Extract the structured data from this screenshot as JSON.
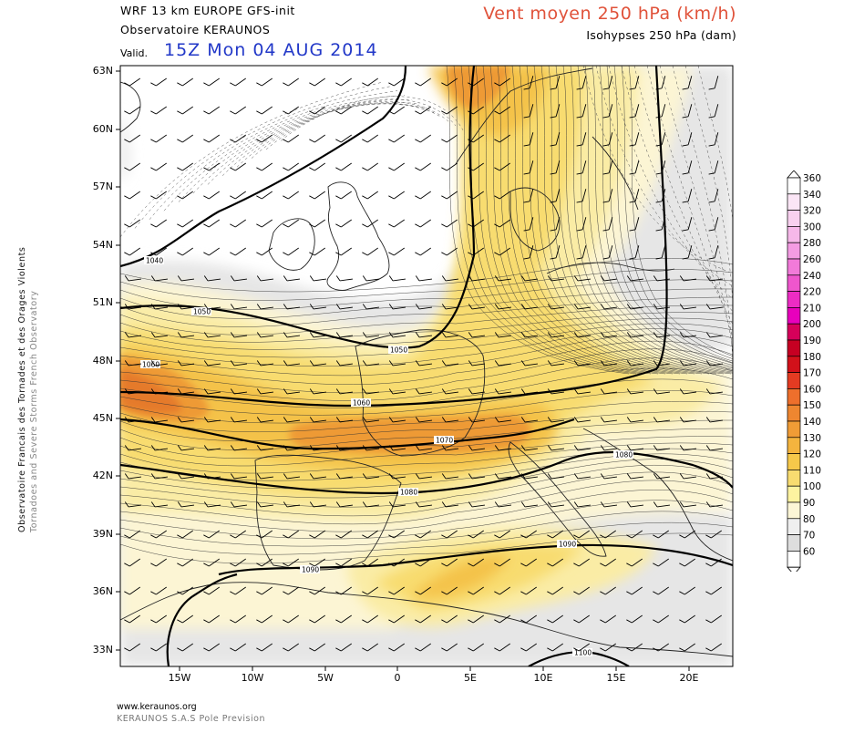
{
  "header": {
    "model": "WRF 13 km EUROPE   GFS-init",
    "organization": "Observatoire KERAUNOS",
    "valid_label": "Valid.",
    "valid_time": "15Z Mon 04 AUG 2014",
    "product": "Vent moyen 250 hPa (km/h)",
    "subtitle": "Isohypses 250 hPa (dam)"
  },
  "side_text": {
    "line1": "Observatoire Francais des Tornades et des Orages Violents",
    "line2": "Tornadoes and Severe Storms French Observatory"
  },
  "map": {
    "lat_labels": [
      "63N",
      "60N",
      "57N",
      "54N",
      "51N",
      "48N",
      "45N",
      "42N",
      "39N",
      "36N",
      "33N"
    ],
    "lon_labels": [
      "15W",
      "10W",
      "5W",
      "0",
      "5E",
      "10E",
      "15E",
      "20E"
    ],
    "isohypse_labels": [
      "1040",
      "1050",
      "1050",
      "1060",
      "1060",
      "1070",
      "1080",
      "1080",
      "1090",
      "1090",
      "1100"
    ],
    "colors": {
      "light_gray": "#e6e6e6",
      "cream": "#fcf5d4",
      "light_yellow": "#faeca5",
      "yellow": "#f8dc70",
      "gold": "#f4c248",
      "orange": "#ee9a36",
      "dark_orange": "#e57a2c"
    }
  },
  "legend": {
    "values": [
      "360",
      "340",
      "320",
      "300",
      "280",
      "260",
      "240",
      "220",
      "210",
      "200",
      "190",
      "180",
      "170",
      "160",
      "150",
      "140",
      "130",
      "120",
      "110",
      "100",
      "90",
      "80",
      "70",
      "60"
    ],
    "colors": [
      "#ffffff",
      "#fbe6f6",
      "#f8d0ef",
      "#f6b8e9",
      "#f49ce3",
      "#f27ad9",
      "#ef56cd",
      "#ec2cc4",
      "#e800bc",
      "#d6005a",
      "#c60022",
      "#d2111a",
      "#e43b22",
      "#ee6f2c",
      "#ee8630",
      "#f09c36",
      "#f4b43e",
      "#f6c84a",
      "#f8dc70",
      "#fdf3a0",
      "#fcf6d6",
      "#efefef",
      "#dedede",
      "#ffffff"
    ]
  },
  "footer": {
    "url": "www.keraunos.org",
    "company": "KERAUNOS S.A.S Pole Prevision"
  }
}
